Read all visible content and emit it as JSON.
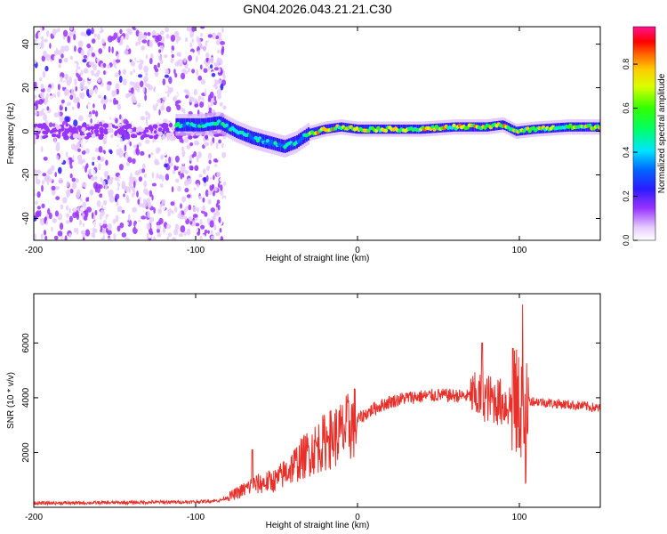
{
  "title": "GN04.2026.043.21.21.C30",
  "chart_data": [
    {
      "type": "heatmap",
      "title": "GN04.2026.043.21.21.C30",
      "xlabel": "Height of straight line (km)",
      "ylabel": "Frequency (Hz)",
      "xlim": [
        -200,
        150
      ],
      "ylim": [
        -50,
        48
      ],
      "x_ticks": [
        "-200",
        "-100",
        "0",
        "100"
      ],
      "y_ticks": [
        "-40",
        "-20",
        "0",
        "20",
        "40"
      ],
      "colorbar": {
        "label": "Normalized spectral amplitude",
        "range": [
          0.0,
          0.97
        ],
        "ticks": [
          "0.0",
          "0.2",
          "0.4",
          "0.6",
          "0.8"
        ],
        "colormap": "rainbow (white-violet-blue-cyan-green-yellow-red-magenta)"
      },
      "ridge_frequency_hz": [
        {
          "x": -110,
          "y": 3
        },
        {
          "x": -95,
          "y": 3
        },
        {
          "x": -85,
          "y": 4
        },
        {
          "x": -75,
          "y": 0
        },
        {
          "x": -65,
          "y": -3
        },
        {
          "x": -55,
          "y": -5
        },
        {
          "x": -45,
          "y": -7
        },
        {
          "x": -38,
          "y": -5
        },
        {
          "x": -30,
          "y": -1
        },
        {
          "x": -20,
          "y": 1
        },
        {
          "x": -10,
          "y": 2
        },
        {
          "x": 0,
          "y": 1
        },
        {
          "x": 20,
          "y": 1
        },
        {
          "x": 40,
          "y": 1
        },
        {
          "x": 60,
          "y": 2
        },
        {
          "x": 80,
          "y": 2
        },
        {
          "x": 90,
          "y": 3
        },
        {
          "x": 98,
          "y": 0
        },
        {
          "x": 110,
          "y": 1
        },
        {
          "x": 130,
          "y": 2
        },
        {
          "x": 150,
          "y": 2
        }
      ]
    },
    {
      "type": "line",
      "xlabel": "Height of straight line (km)",
      "ylabel": "SNR (10 * v/v)",
      "xlim": [
        -200,
        150
      ],
      "ylim": [
        0,
        7800
      ],
      "x_ticks": [
        "-200",
        "-100",
        "0",
        "100"
      ],
      "y_ticks": [
        "2000",
        "4000",
        "6000"
      ],
      "color": "#e8302a",
      "envelope": [
        {
          "x": -200,
          "y": 150
        },
        {
          "x": -150,
          "y": 170
        },
        {
          "x": -100,
          "y": 200
        },
        {
          "x": -85,
          "y": 250
        },
        {
          "x": -75,
          "y": 500
        },
        {
          "x": -65,
          "y": 800
        },
        {
          "x": -50,
          "y": 1000
        },
        {
          "x": -40,
          "y": 1500
        },
        {
          "x": -30,
          "y": 2000
        },
        {
          "x": -20,
          "y": 2400
        },
        {
          "x": -10,
          "y": 2700
        },
        {
          "x": 0,
          "y": 3200
        },
        {
          "x": 10,
          "y": 3600
        },
        {
          "x": 20,
          "y": 3850
        },
        {
          "x": 30,
          "y": 4000
        },
        {
          "x": 50,
          "y": 4100
        },
        {
          "x": 70,
          "y": 4050
        },
        {
          "x": 80,
          "y": 4000
        },
        {
          "x": 90,
          "y": 3800
        },
        {
          "x": 100,
          "y": 3700
        },
        {
          "x": 105,
          "y": 3900
        },
        {
          "x": 120,
          "y": 3800
        },
        {
          "x": 140,
          "y": 3700
        },
        {
          "x": 150,
          "y": 3600
        }
      ],
      "peak": {
        "x": 103,
        "y": 7800
      }
    }
  ]
}
